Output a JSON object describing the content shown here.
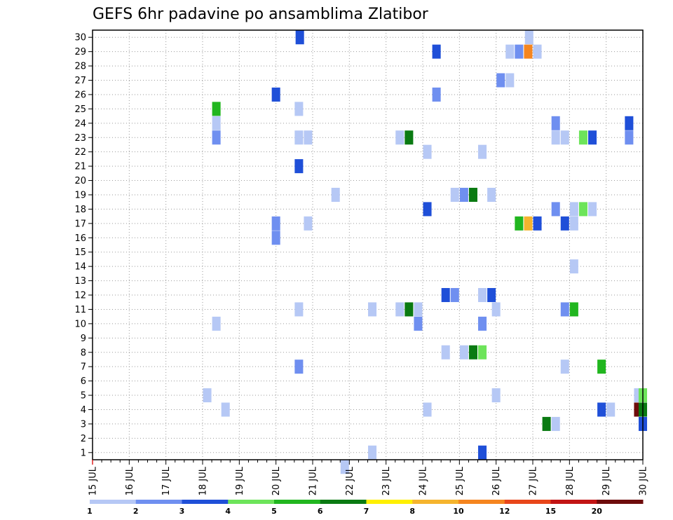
{
  "chart_data": {
    "type": "heatmap",
    "title": "GEFS 6hr padavine po ansamblima Zlatibor",
    "xlabel": "",
    "ylabel": "",
    "x_ticks": [
      "15 JUL",
      "16 JUL",
      "17 JUL",
      "18 JUL",
      "19 JUL",
      "20 JUL",
      "21 JUL",
      "22 JUL",
      "23 JUL",
      "24 JUL",
      "25 JUL",
      "26 JUL",
      "27 JUL",
      "28 JUL",
      "29 JUL",
      "30 JUL"
    ],
    "y_ticks": [
      "1",
      "2",
      "3",
      "4",
      "5",
      "6",
      "7",
      "8",
      "9",
      "10",
      "11",
      "12",
      "13",
      "14",
      "15",
      "16",
      "17",
      "18",
      "19",
      "20",
      "21",
      "22",
      "23",
      "24",
      "25",
      "26",
      "27",
      "28",
      "29",
      "30"
    ],
    "xlim_steps": [
      0,
      60
    ],
    "ylim": [
      0.5,
      30.5
    ],
    "grid": true,
    "colorbar": {
      "labels": [
        "1",
        "2",
        "3",
        "4",
        "5",
        "6",
        "7",
        "8",
        "10",
        "12",
        "15",
        "20"
      ],
      "colors": [
        "#b6c8f5",
        "#6f8ff0",
        "#1f4fd8",
        "#6de45a",
        "#21b61f",
        "#0a7a12",
        "#fff000",
        "#f5b42e",
        "#f5851f",
        "#e8461a",
        "#c21414",
        "#6e0c0c"
      ]
    },
    "cells": [
      {
        "member": 30,
        "steps": [
          [
            22.6,
            2
          ],
          [
            47.6,
            0
          ]
        ]
      },
      {
        "member": 29,
        "steps": [
          [
            37.5,
            2
          ],
          [
            45.5,
            0
          ],
          [
            46.5,
            1
          ],
          [
            47.5,
            8
          ],
          [
            48.5,
            0
          ]
        ]
      },
      {
        "member": 27,
        "steps": [
          [
            44.5,
            1
          ],
          [
            45.5,
            0
          ]
        ]
      },
      {
        "member": 26,
        "steps": [
          [
            20.0,
            2
          ],
          [
            37.5,
            1
          ]
        ]
      },
      {
        "member": 25,
        "steps": [
          [
            13.5,
            4
          ],
          [
            22.5,
            0
          ]
        ]
      },
      {
        "member": 24,
        "steps": [
          [
            13.5,
            0
          ],
          [
            50.5,
            1
          ],
          [
            58.5,
            2
          ]
        ]
      },
      {
        "member": 23,
        "steps": [
          [
            13.5,
            1
          ],
          [
            22.5,
            0
          ],
          [
            23.5,
            0
          ],
          [
            33.5,
            0
          ],
          [
            34.5,
            5
          ],
          [
            50.5,
            0
          ],
          [
            51.5,
            0
          ],
          [
            53.5,
            3
          ],
          [
            54.5,
            2
          ],
          [
            58.5,
            1
          ]
        ]
      },
      {
        "member": 22,
        "steps": [
          [
            36.5,
            0
          ],
          [
            42.5,
            0
          ]
        ]
      },
      {
        "member": 21,
        "steps": [
          [
            22.5,
            2
          ]
        ]
      },
      {
        "member": 19,
        "steps": [
          [
            26.5,
            0
          ],
          [
            39.5,
            0
          ],
          [
            40.5,
            1
          ],
          [
            41.5,
            5
          ],
          [
            43.5,
            0
          ]
        ]
      },
      {
        "member": 18,
        "steps": [
          [
            36.5,
            2
          ],
          [
            50.5,
            1
          ],
          [
            52.5,
            0
          ],
          [
            53.5,
            3
          ],
          [
            54.5,
            0
          ]
        ]
      },
      {
        "member": 17,
        "steps": [
          [
            20.0,
            1
          ],
          [
            23.5,
            0
          ],
          [
            46.5,
            4
          ],
          [
            47.5,
            7
          ],
          [
            48.5,
            2
          ],
          [
            51.5,
            2
          ],
          [
            52.5,
            0
          ]
        ]
      },
      {
        "member": 16,
        "steps": [
          [
            20.0,
            1
          ]
        ]
      },
      {
        "member": 14,
        "steps": [
          [
            52.5,
            0
          ]
        ]
      },
      {
        "member": 12,
        "steps": [
          [
            38.5,
            2
          ],
          [
            39.5,
            1
          ],
          [
            42.5,
            0
          ],
          [
            43.5,
            2
          ]
        ]
      },
      {
        "member": 11,
        "steps": [
          [
            22.5,
            0
          ],
          [
            30.5,
            0
          ],
          [
            33.5,
            0
          ],
          [
            34.5,
            5
          ],
          [
            35.5,
            0
          ],
          [
            44.0,
            0
          ],
          [
            51.5,
            1
          ],
          [
            52.5,
            4
          ]
        ]
      },
      {
        "member": 10,
        "steps": [
          [
            13.5,
            0
          ],
          [
            35.5,
            1
          ],
          [
            42.5,
            1
          ]
        ]
      },
      {
        "member": 8,
        "steps": [
          [
            38.5,
            0
          ],
          [
            40.5,
            0
          ],
          [
            41.5,
            5
          ],
          [
            42.5,
            3
          ]
        ]
      },
      {
        "member": 7,
        "steps": [
          [
            22.5,
            1
          ],
          [
            51.5,
            0
          ],
          [
            55.5,
            4
          ]
        ]
      },
      {
        "member": 5,
        "steps": [
          [
            12.5,
            0
          ],
          [
            44.0,
            0
          ],
          [
            59.5,
            0
          ],
          [
            60.0,
            3
          ]
        ]
      },
      {
        "member": 4,
        "steps": [
          [
            14.5,
            0
          ],
          [
            36.5,
            0
          ],
          [
            55.5,
            2
          ],
          [
            56.5,
            0
          ],
          [
            59.5,
            11
          ],
          [
            60.0,
            5
          ]
        ]
      },
      {
        "member": 3,
        "steps": [
          [
            49.5,
            5
          ],
          [
            50.5,
            0
          ],
          [
            60.0,
            2
          ]
        ]
      },
      {
        "member": 1,
        "steps": [
          [
            30.5,
            0
          ],
          [
            42.5,
            2
          ]
        ]
      },
      {
        "member": 0,
        "steps": [
          [
            27.5,
            0
          ]
        ]
      }
    ]
  }
}
